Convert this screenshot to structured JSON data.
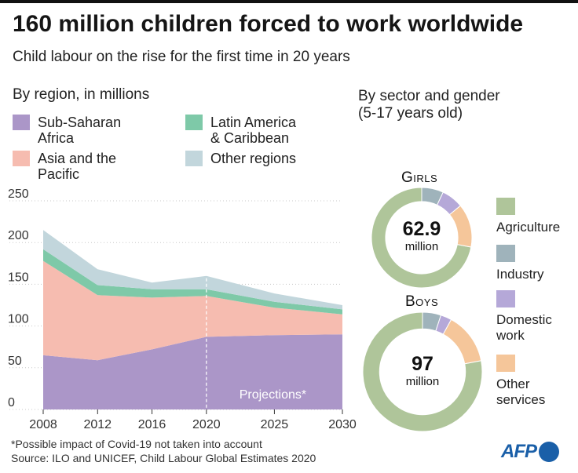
{
  "header": {
    "title": "160 million children forced to work worldwide",
    "subtitle": "Child labour on the rise for the first time in 20 years"
  },
  "region_section_title": "By region, in millions",
  "sector_section_title": "By sector and gender\n(5-17 years old)",
  "region_legend": [
    {
      "label": "Sub-Saharan\nAfrica",
      "color": "#ab96c8"
    },
    {
      "label": "Latin America\n& Caribbean",
      "color": "#7ec9a8"
    },
    {
      "label": "Asia and the\nPacific",
      "color": "#f6bcb0"
    },
    {
      "label": "Other regions",
      "color": "#c2d6dc"
    }
  ],
  "projection_label": "Projections*",
  "sector_legend": [
    {
      "label": "Agriculture",
      "color": "#afc59a"
    },
    {
      "label": "Industry",
      "color": "#9fb3bb"
    },
    {
      "label": "Domestic\nwork",
      "color": "#b5a8d8"
    },
    {
      "label": "Other\nservices",
      "color": "#f5c69a"
    }
  ],
  "donuts": [
    {
      "label": "Girls",
      "value": "62.9",
      "unit": "million"
    },
    {
      "label": "Boys",
      "value": "97",
      "unit": "million"
    }
  ],
  "footnote": {
    "line1": "*Possible impact of Covid-19 not taken into account",
    "line2": "Source: ILO and UNICEF, Child Labour Global Estimates 2020"
  },
  "logo_text": "AFP",
  "chart_data": [
    {
      "type": "area",
      "stacked": true,
      "title": "By region, in millions",
      "x": [
        2008,
        2012,
        2016,
        2020,
        2025,
        2030
      ],
      "x_ticks": [
        "2008",
        "2012",
        "2016",
        "2020",
        "2025",
        "2030"
      ],
      "ylim": [
        0,
        250
      ],
      "y_ticks": [
        0,
        50,
        100,
        150,
        200,
        250
      ],
      "series": [
        {
          "name": "Sub-Saharan Africa",
          "color": "#ab96c8",
          "values": [
            65,
            59,
            72,
            87,
            89,
            90
          ]
        },
        {
          "name": "Asia and the Pacific",
          "color": "#f6bcb0",
          "values": [
            113,
            78,
            62,
            49,
            33,
            24
          ]
        },
        {
          "name": "Latin America & Caribbean",
          "color": "#7ec9a8",
          "values": [
            14,
            12,
            10,
            8,
            7,
            6
          ]
        },
        {
          "name": "Other regions",
          "color": "#c2d6dc",
          "values": [
            23,
            19,
            8,
            16,
            10,
            5
          ]
        }
      ],
      "projection_from": 2020,
      "grid": true
    },
    {
      "type": "pie",
      "title": "Girls",
      "hole": 0.72,
      "slices": [
        {
          "name": "Agriculture",
          "value": 72,
          "color": "#afc59a"
        },
        {
          "name": "Industry",
          "value": 7,
          "color": "#9fb3bb"
        },
        {
          "name": "Domestic work",
          "value": 7,
          "color": "#b5a8d8"
        },
        {
          "name": "Other services",
          "value": 14,
          "color": "#f5c69a"
        }
      ]
    },
    {
      "type": "pie",
      "title": "Boys",
      "hole": 0.72,
      "slices": [
        {
          "name": "Agriculture",
          "value": 78,
          "color": "#afc59a"
        },
        {
          "name": "Industry",
          "value": 5,
          "color": "#9fb3bb"
        },
        {
          "name": "Domestic work",
          "value": 3,
          "color": "#b5a8d8"
        },
        {
          "name": "Other services",
          "value": 14,
          "color": "#f5c69a"
        }
      ]
    }
  ]
}
